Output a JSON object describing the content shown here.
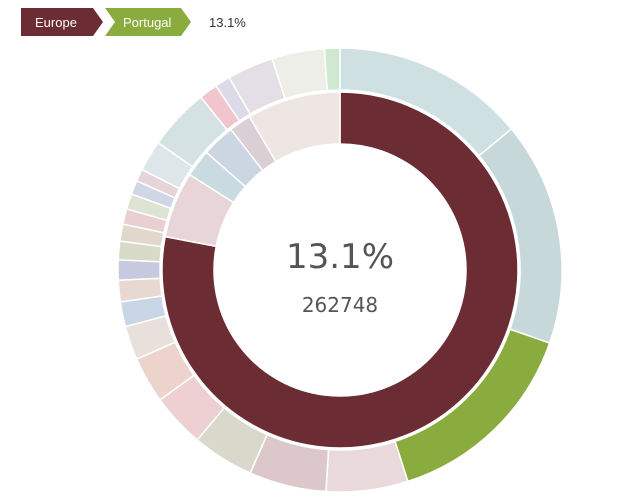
{
  "breadcrumb": {
    "items": [
      {
        "label": "Europe",
        "color": "#6b2c33"
      },
      {
        "label": "Portugal",
        "color": "#8aac3e"
      }
    ],
    "current_value": "13.1%"
  },
  "center": {
    "percentage": "13.1%",
    "value": "262748"
  },
  "chart_data": {
    "type": "sunburst",
    "inner_ring": [
      {
        "label": "Europe",
        "share": 0.78,
        "color": "#6b2c33"
      },
      {
        "label": "",
        "share": 0.06,
        "color": "#e8d5d7"
      },
      {
        "label": "",
        "share": 0.025,
        "color": "#c9dbe0"
      },
      {
        "label": "",
        "share": 0.03,
        "color": "#ccd6e2"
      },
      {
        "label": "",
        "share": 0.02,
        "color": "#d9cfd4"
      },
      {
        "label": "",
        "share": 0.085,
        "color": "#ede6e3"
      }
    ],
    "outer_ring": [
      {
        "label": "",
        "share": 0.125,
        "color": "#cfe0e2"
      },
      {
        "label": "",
        "share": 0.145,
        "color": "#c6d8d9"
      },
      {
        "label": "Portugal",
        "share": 0.131,
        "color": "#8aac3e"
      },
      {
        "label": "",
        "share": 0.053,
        "color": "#ead9db"
      },
      {
        "label": "",
        "share": 0.05,
        "color": "#dcc8cb"
      },
      {
        "label": "",
        "share": 0.04,
        "color": "#d8d9cb"
      },
      {
        "label": "",
        "share": 0.035,
        "color": "#efd0d2"
      },
      {
        "label": "",
        "share": 0.03,
        "color": "#ecd4cd"
      },
      {
        "label": "",
        "share": 0.022,
        "color": "#e8e0da"
      },
      {
        "label": "",
        "share": 0.016,
        "color": "#c9d6e6"
      },
      {
        "label": "",
        "share": 0.014,
        "color": "#e7d9d2"
      },
      {
        "label": "",
        "share": 0.013,
        "color": "#c7c9de"
      },
      {
        "label": "",
        "share": 0.012,
        "color": "#d6dac7"
      },
      {
        "label": "",
        "share": 0.011,
        "color": "#e2d7cb"
      },
      {
        "label": "",
        "share": 0.01,
        "color": "#e9cfd2"
      },
      {
        "label": "",
        "share": 0.01,
        "color": "#dfe3d3"
      },
      {
        "label": "",
        "share": 0.009,
        "color": "#cfd7e4"
      },
      {
        "label": "",
        "share": 0.008,
        "color": "#e6d5d8"
      },
      {
        "label": "",
        "share": 0.02,
        "color": "#dde6e8"
      },
      {
        "label": "",
        "share": 0.04,
        "color": "#d5e2e4"
      },
      {
        "label": "",
        "share": 0.012,
        "color": "#f0c6cc"
      },
      {
        "label": "",
        "share": 0.01,
        "color": "#dcd9e8"
      },
      {
        "label": "",
        "share": 0.03,
        "color": "#e4dfe6"
      },
      {
        "label": "",
        "share": 0.034,
        "color": "#eeeee8"
      },
      {
        "label": "",
        "share": 0.01,
        "color": "#cfe8cf"
      },
      {
        "label": "",
        "share": 0.0,
        "color": "#ffffff"
      }
    ]
  }
}
